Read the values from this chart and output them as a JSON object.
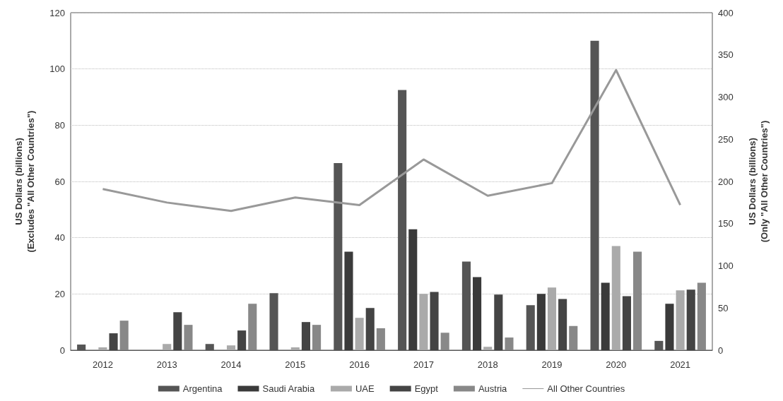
{
  "chart_data": {
    "type": "bar",
    "categories": [
      "2012",
      "2013",
      "2014",
      "2015",
      "2016",
      "2017",
      "2018",
      "2019",
      "2020",
      "2021"
    ],
    "series": [
      {
        "name": "Argentina",
        "color": "#555555",
        "values": [
          2,
          0,
          2.2,
          20.3,
          66.5,
          92.5,
          31.5,
          16,
          110,
          3.3
        ]
      },
      {
        "name": "Saudi Arabia",
        "color": "#3a3a3a",
        "values": [
          0,
          0,
          0,
          0,
          35,
          43,
          26,
          20,
          24,
          16.5
        ]
      },
      {
        "name": "UAE",
        "color": "#aaaaaa",
        "values": [
          1,
          2.2,
          1.7,
          1,
          11.5,
          20,
          1.2,
          22.3,
          37,
          21.3
        ]
      },
      {
        "name": "Egypt",
        "color": "#444444",
        "values": [
          6,
          13.5,
          7,
          10,
          15,
          20.7,
          19.8,
          18.2,
          19.2,
          21.5
        ]
      },
      {
        "name": "Austria",
        "color": "#888888",
        "values": [
          10.5,
          9,
          16.5,
          9,
          7.8,
          6.2,
          4.5,
          8.6,
          35,
          24
        ]
      },
      {
        "name": "All Other Countries",
        "type": "line",
        "axis": "y2",
        "color": "#999999",
        "values": [
          191,
          175,
          165,
          181,
          172,
          226,
          183,
          198,
          332,
          172
        ]
      }
    ],
    "ylabel": "US Dollars (billions)\n(Excludes \"All Other Countries\")",
    "y2label": "US Dollars (billions)\n(Only \"All Other Countries\")",
    "ylim": [
      0,
      120
    ],
    "yticks": [
      0,
      20,
      40,
      60,
      80,
      100,
      120
    ],
    "y2lim": [
      0,
      400
    ],
    "y2ticks": [
      0,
      50,
      100,
      150,
      200,
      250,
      300,
      350,
      400
    ],
    "grid": "y",
    "legend": "bottom",
    "marker": "none",
    "line_style": "solid"
  }
}
